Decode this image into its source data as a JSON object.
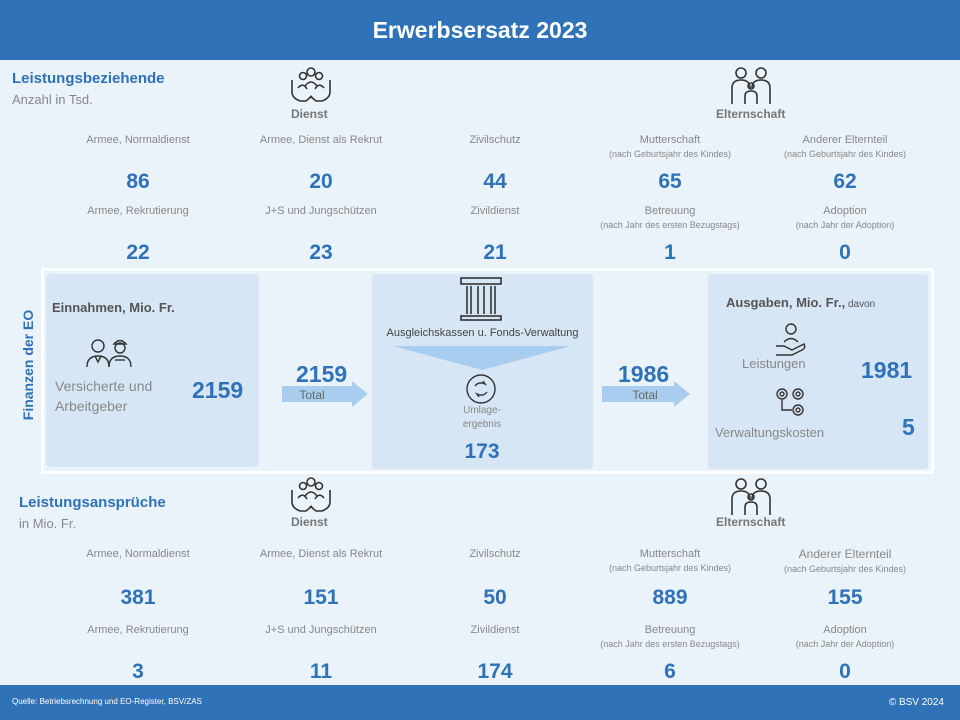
{
  "title": "Erwerbsersatz 2023",
  "footer": {
    "source": "Quelle:  Betriebsrechnung  und EO-Register,  BSV/ZAS",
    "copyright": "© BSV 2024"
  },
  "recipients": {
    "title": "Leistungsbeziehende",
    "subtitle": "Anzahl in Tsd.",
    "cat_dienst": "Dienst",
    "cat_eltern": "Elternschaft",
    "row1": [
      {
        "label": "Armee,  Normaldienst",
        "note": "",
        "value": "86"
      },
      {
        "label": "Armee,  Dienst als Rekrut",
        "note": "",
        "value": "20"
      },
      {
        "label": "Zivilschutz",
        "note": "",
        "value": "44"
      },
      {
        "label": "Mutterschaft",
        "note": "(nach Geburtsjahr des Kindes)",
        "value": "65"
      },
      {
        "label": "Anderer Elternteil",
        "note": "(nach Geburtsjahr des Kindes)",
        "value": "62"
      }
    ],
    "row2": [
      {
        "label": "Armee,  Rekrutierung",
        "note": "",
        "value": "22"
      },
      {
        "label": "J+S und Jungschützen",
        "note": "",
        "value": "23"
      },
      {
        "label": "Zivildienst",
        "note": "",
        "value": "21"
      },
      {
        "label": "Betreuung",
        "note": "(nach Jahr des ersten Bezugstags)",
        "value": "1"
      },
      {
        "label": "Adoption",
        "note": "(nach Jahr der Adoption)",
        "value": "0"
      }
    ]
  },
  "finance": {
    "vertical_label": "Finanzen der EO",
    "income_title": "Einnahmen, Mio. Fr.",
    "income_label_1": "Versicherte und",
    "income_label_2": "Arbeitgeber",
    "income_value": "2159",
    "income_total_value": "2159",
    "income_total_label": "Total",
    "fund_title": "Ausgleichskassen u. Fonds-Verwaltung",
    "fund_result_1": "Umlage-",
    "fund_result_2": "ergebnis",
    "fund_result_value": "173",
    "expense_total_value": "1986",
    "expense_total_label": "Total",
    "expense_title": "Ausgaben, Mio. Fr.,",
    "expense_title_suffix": " davon",
    "benefits_label": "Leistungen",
    "benefits_value": "1981",
    "admin_label": "Verwaltungskosten",
    "admin_value": "5"
  },
  "claims": {
    "title": "Leistungsansprüche",
    "subtitle": "in Mio. Fr.",
    "cat_dienst": "Dienst",
    "cat_eltern": "Elternschaft",
    "row1": [
      {
        "label": "Armee,  Normaldienst",
        "note": "",
        "value": "381"
      },
      {
        "label": "Armee,  Dienst als Rekrut",
        "note": "",
        "value": "151"
      },
      {
        "label": "Zivilschutz",
        "note": "",
        "value": "50"
      },
      {
        "label": "Mutterschaft",
        "note": "(nach Geburtsjahr des Kindes)",
        "value": "889"
      },
      {
        "label": "Anderer Elternteil",
        "note": "(nach Geburtsjahr des Kindes)",
        "value": "155"
      }
    ],
    "row2": [
      {
        "label": "Armee,  Rekrutierung",
        "note": "",
        "value": "3"
      },
      {
        "label": "J+S und Jungschützen",
        "note": "",
        "value": "11"
      },
      {
        "label": "Zivildienst",
        "note": "",
        "value": "174"
      },
      {
        "label": "Betreuung",
        "note": "(nach Jahr des ersten Bezugstags)",
        "value": "6"
      },
      {
        "label": "Adoption",
        "note": "(nach Jahr der Adoption)",
        "value": "0"
      }
    ]
  },
  "colors": {
    "primary": "#2f72b8",
    "panel": "#d6e6f5",
    "arrow": "#a9cdee",
    "background": "#eaf2fa"
  },
  "icons": [
    "hands-people-icon",
    "family-icon",
    "workers-icon",
    "columns-building-icon",
    "cycle-icon",
    "hand-person-icon",
    "gears-icon"
  ]
}
